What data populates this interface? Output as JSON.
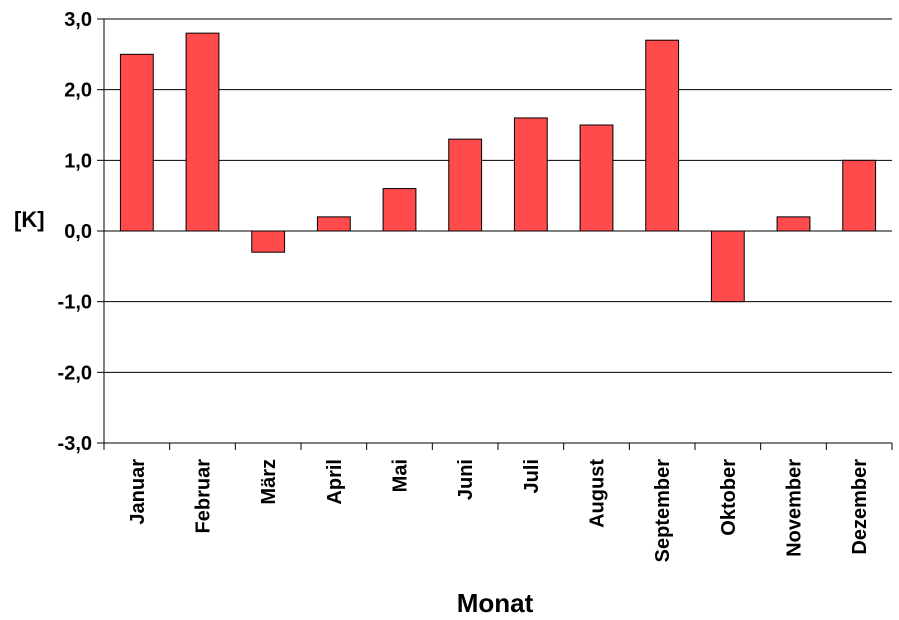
{
  "chart_data": {
    "type": "bar",
    "title": "",
    "xlabel": "Monat",
    "ylabel": "[K]",
    "ylim": [
      -3.0,
      3.0
    ],
    "yticks": [
      "3,0",
      "2,0",
      "1,0",
      "0,0",
      "-1,0",
      "-2,0",
      "-3,0"
    ],
    "ytick_values": [
      3,
      2,
      1,
      0,
      -1,
      -2,
      -3
    ],
    "categories": [
      "Januar",
      "Februar",
      "März",
      "April",
      "Mai",
      "Juni",
      "Juli",
      "August",
      "September",
      "Oktober",
      "November",
      "Dezember"
    ],
    "values": [
      2.5,
      2.8,
      -0.3,
      0.2,
      0.6,
      1.3,
      1.6,
      1.5,
      2.7,
      -1.0,
      0.2,
      1.0
    ],
    "grid": true,
    "legend": "none",
    "colors": {
      "bar_fill": "#ff4b4b",
      "bar_stroke": "#000000",
      "grid": "#000000",
      "axis": "#000000"
    }
  }
}
